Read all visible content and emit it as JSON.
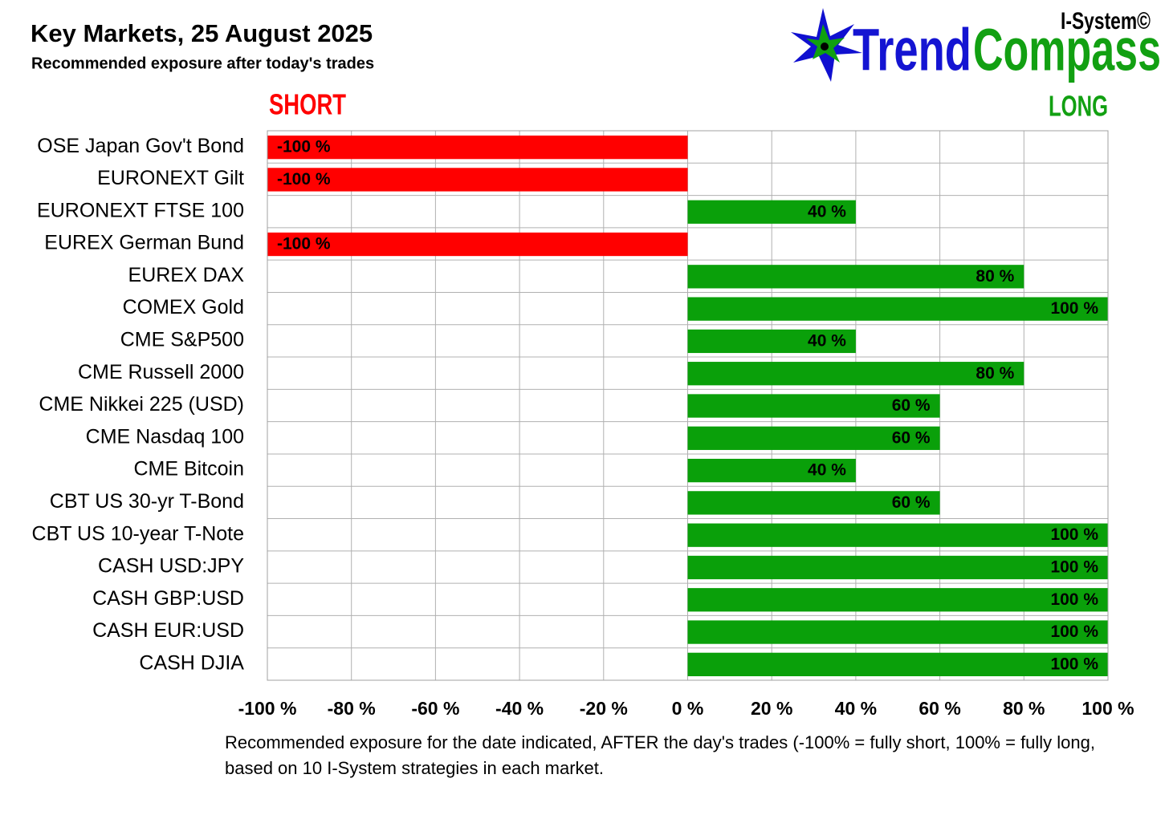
{
  "logo": {
    "superscript": "I-System©",
    "word1": "Trend",
    "word2": "Compass"
  },
  "chart_data": {
    "type": "hbar",
    "title": "Key Markets, 25 August 2025",
    "subtitle": "Recommended exposure after today's trades",
    "short_label": "SHORT",
    "long_label": "LONG",
    "footnote": "Recommended exposure for the date indicated, AFTER the day's trades (-100% = fully short, 100% = fully long, based on 10 I-System strategies in each market.",
    "categories": [
      "OSE Japan Gov't Bond",
      "EURONEXT Gilt",
      "EURONEXT FTSE 100",
      "EUREX German Bund",
      "EUREX DAX",
      "COMEX Gold",
      "CME S&P500",
      "CME Russell 2000",
      "CME Nikkei 225 (USD)",
      "CME Nasdaq 100",
      "CME Bitcoin",
      "CBT US 30-yr T-Bond",
      "CBT US 10-year T-Note",
      "CASH USD:JPY",
      "CASH GBP:USD",
      "CASH EUR:USD",
      "CASH DJIA"
    ],
    "values": [
      -100,
      -100,
      40,
      -100,
      80,
      100,
      40,
      80,
      60,
      60,
      40,
      60,
      100,
      100,
      100,
      100,
      100
    ],
    "value_labels": [
      "-100 %",
      "-100 %",
      "40 %",
      "-100 %",
      "80 %",
      "100 %",
      "40 %",
      "80 %",
      "60 %",
      "60 %",
      "40 %",
      "60 %",
      "100 %",
      "100 %",
      "100 %",
      "100 %",
      "100 %"
    ],
    "negative_color": "#ff0000",
    "positive_color": "#0aa00a",
    "xlim": [
      -100,
      100
    ],
    "xticks": [
      {
        "value": -100,
        "label": "-100 %"
      },
      {
        "value": -80,
        "label": "-80 %"
      },
      {
        "value": -60,
        "label": "-60 %"
      },
      {
        "value": -40,
        "label": "-40 %"
      },
      {
        "value": -20,
        "label": "-20 %"
      },
      {
        "value": 0,
        "label": "0 %"
      },
      {
        "value": 20,
        "label": "20 %"
      },
      {
        "value": 40,
        "label": "40 %"
      },
      {
        "value": 60,
        "label": "60 %"
      },
      {
        "value": 80,
        "label": "80 %"
      },
      {
        "value": 100,
        "label": "100 %"
      }
    ],
    "grid": true
  }
}
